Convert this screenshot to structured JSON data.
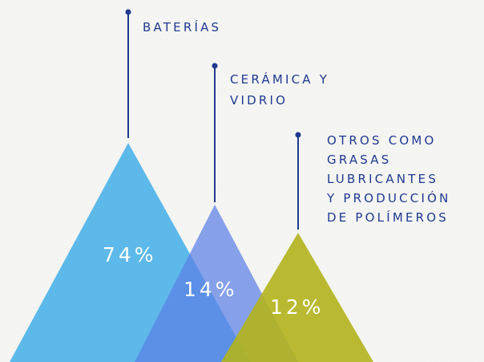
{
  "items": [
    {
      "label_lines": [
        "BATERÍAS"
      ],
      "value": "74%"
    },
    {
      "label_lines": [
        "CERÁMICA Y",
        "VIDRIO"
      ],
      "value": "14%"
    },
    {
      "label_lines": [
        "OTROS COMO",
        "GRASAS",
        "LUBRICANTES",
        "Y PRODUCCIÓN",
        "DE POLÍMEROS"
      ],
      "value": "12%"
    }
  ]
}
